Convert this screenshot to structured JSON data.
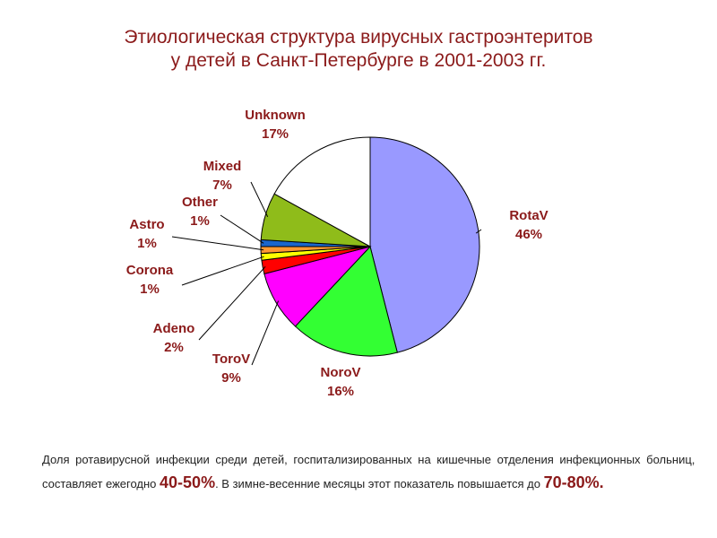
{
  "title": {
    "line1": "Этиологическая структура вирусных гастроэнтеритов",
    "line2": "у детей в Санкт-Петербурге в 2001-2003 гг."
  },
  "chart_data": {
    "type": "pie",
    "title": "Этиологическая структура вирусных гастроэнтеритов у детей в Санкт-Петербурге в 2001-2003 гг.",
    "slices": [
      {
        "name": "RotaV",
        "value": 46,
        "label": "46%",
        "color": "#9999ff"
      },
      {
        "name": "NoroV",
        "value": 16,
        "label": "16%",
        "color": "#33ff33"
      },
      {
        "name": "ToroV",
        "value": 9,
        "label": "9%",
        "color": "#ff00ff"
      },
      {
        "name": "Adeno",
        "value": 2,
        "label": "2%",
        "color": "#ff0000"
      },
      {
        "name": "Corona",
        "value": 1,
        "label": "1%",
        "color": "#ffff00"
      },
      {
        "name": "Astro",
        "value": 1,
        "label": "1%",
        "color": "#ff9933"
      },
      {
        "name": "Other",
        "value": 1,
        "label": "1%",
        "color": "#1a66cc"
      },
      {
        "name": "Mixed",
        "value": 7,
        "label": "7%",
        "color": "#8fbc1a"
      },
      {
        "name": "Unknown",
        "value": 17,
        "label": "17%",
        "color": "#ffffff"
      }
    ],
    "start_angle": "12 o'clock",
    "direction": "clockwise",
    "label_color": "#8b1a1a",
    "legend": "none"
  },
  "caption": {
    "line1": "Доля ротавирусной инфекции среди детей, госпитализированных на кишечные отделения инфекционных больниц,",
    "line2_part1": "составляет ежегодно ",
    "line2_highlight1": "40-50%",
    "line2_part2": ". В зимне-весенние месяцы этот показатель повышается до ",
    "line2_highlight2": "70-80%."
  }
}
